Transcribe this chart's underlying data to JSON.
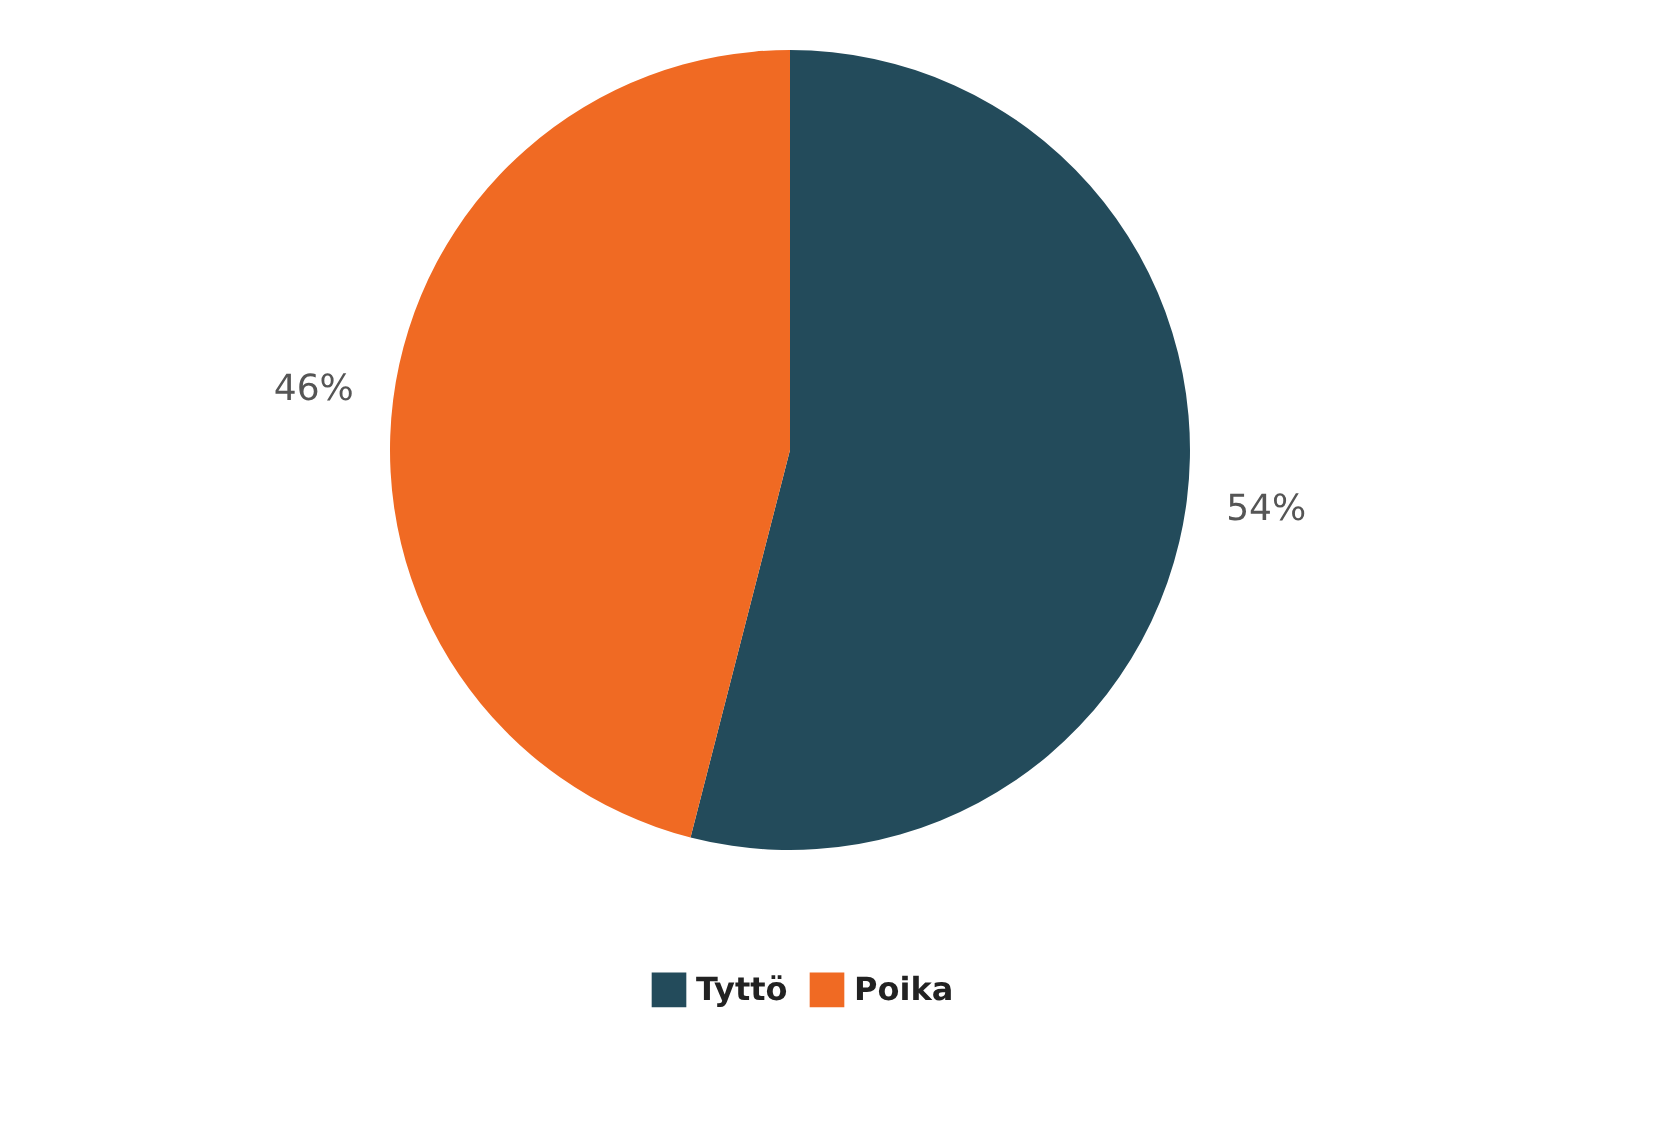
{
  "chart_data": {
    "type": "pie",
    "categories": [
      "Tyttö",
      "Poika"
    ],
    "values": [
      54,
      46
    ],
    "colors": [
      "#234b5b",
      "#f06a23"
    ],
    "value_labels": [
      "54%",
      "46%"
    ],
    "legend": "bottom"
  }
}
